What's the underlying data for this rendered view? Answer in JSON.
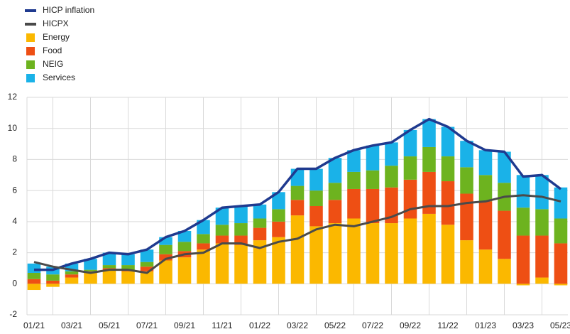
{
  "chart_data": {
    "type": "stacked-bar-line",
    "categories": [
      "01/21",
      null,
      "03/21",
      null,
      "05/21",
      null,
      "07/21",
      null,
      "09/21",
      null,
      "11/21",
      null,
      "01/22",
      null,
      "03/22",
      null,
      "05/22",
      null,
      "07/22",
      null,
      "09/22",
      null,
      "11/22",
      null,
      "01/23",
      null,
      "03/23",
      null,
      "05/23"
    ],
    "series": [
      {
        "name": "HICP inflation",
        "kind": "line",
        "color": "#1f3a8f",
        "values": [
          0.9,
          0.9,
          1.3,
          1.6,
          2.0,
          1.9,
          2.2,
          3.0,
          3.4,
          4.1,
          4.9,
          5.0,
          5.1,
          5.9,
          7.4,
          7.4,
          8.1,
          8.6,
          8.9,
          9.1,
          9.9,
          10.6,
          10.1,
          9.2,
          8.6,
          8.5,
          6.9,
          7.0,
          6.1
        ]
      },
      {
        "name": "HICPX",
        "kind": "line",
        "color": "#4a4a4a",
        "values": [
          1.4,
          1.1,
          0.9,
          0.7,
          0.9,
          0.9,
          0.7,
          1.6,
          1.9,
          2.0,
          2.6,
          2.6,
          2.3,
          2.7,
          2.9,
          3.5,
          3.8,
          3.7,
          4.0,
          4.3,
          4.8,
          5.0,
          5.0,
          5.2,
          5.3,
          5.6,
          5.7,
          5.6,
          5.3
        ]
      },
      {
        "name": "Energy",
        "kind": "bar",
        "color": "#fbb800",
        "values": [
          -0.4,
          -0.2,
          0.4,
          0.7,
          0.9,
          0.8,
          0.8,
          1.5,
          1.7,
          2.2,
          2.6,
          2.5,
          2.8,
          3.0,
          4.4,
          3.7,
          3.9,
          4.2,
          3.9,
          3.9,
          4.2,
          4.5,
          3.8,
          2.8,
          2.2,
          1.6,
          -0.1,
          0.4,
          -0.1
        ]
      },
      {
        "name": "Food",
        "kind": "bar",
        "color": "#ee4f14",
        "values": [
          0.3,
          0.2,
          0.2,
          0.1,
          0.1,
          0.1,
          0.3,
          0.4,
          0.4,
          0.4,
          0.5,
          0.6,
          0.8,
          1.0,
          1.0,
          1.3,
          1.5,
          1.9,
          2.2,
          2.3,
          2.5,
          2.7,
          2.8,
          3.0,
          3.1,
          3.1,
          3.1,
          2.7,
          2.6
        ]
      },
      {
        "name": "NEIG",
        "kind": "bar",
        "color": "#6db31f",
        "values": [
          0.4,
          0.4,
          0.2,
          0.1,
          0.2,
          0.3,
          0.3,
          0.6,
          0.6,
          0.6,
          0.7,
          0.8,
          0.6,
          0.8,
          0.9,
          1.0,
          1.1,
          1.1,
          1.2,
          1.4,
          1.5,
          1.6,
          1.6,
          1.7,
          1.7,
          1.8,
          1.8,
          1.7,
          1.6
        ]
      },
      {
        "name": "Services",
        "kind": "bar",
        "color": "#1ab2e8",
        "values": [
          0.6,
          0.5,
          0.5,
          0.7,
          0.8,
          0.7,
          0.8,
          0.5,
          0.7,
          0.9,
          1.1,
          1.1,
          0.9,
          1.1,
          1.1,
          1.4,
          1.6,
          1.4,
          1.6,
          1.5,
          1.7,
          1.8,
          1.9,
          1.7,
          1.6,
          2.0,
          2.1,
          2.2,
          2.0
        ]
      }
    ],
    "ylim": [
      -2,
      12
    ],
    "yticks": [
      -2,
      0,
      2,
      4,
      6,
      8,
      10,
      12
    ],
    "grid": true,
    "legend": "top-left"
  }
}
